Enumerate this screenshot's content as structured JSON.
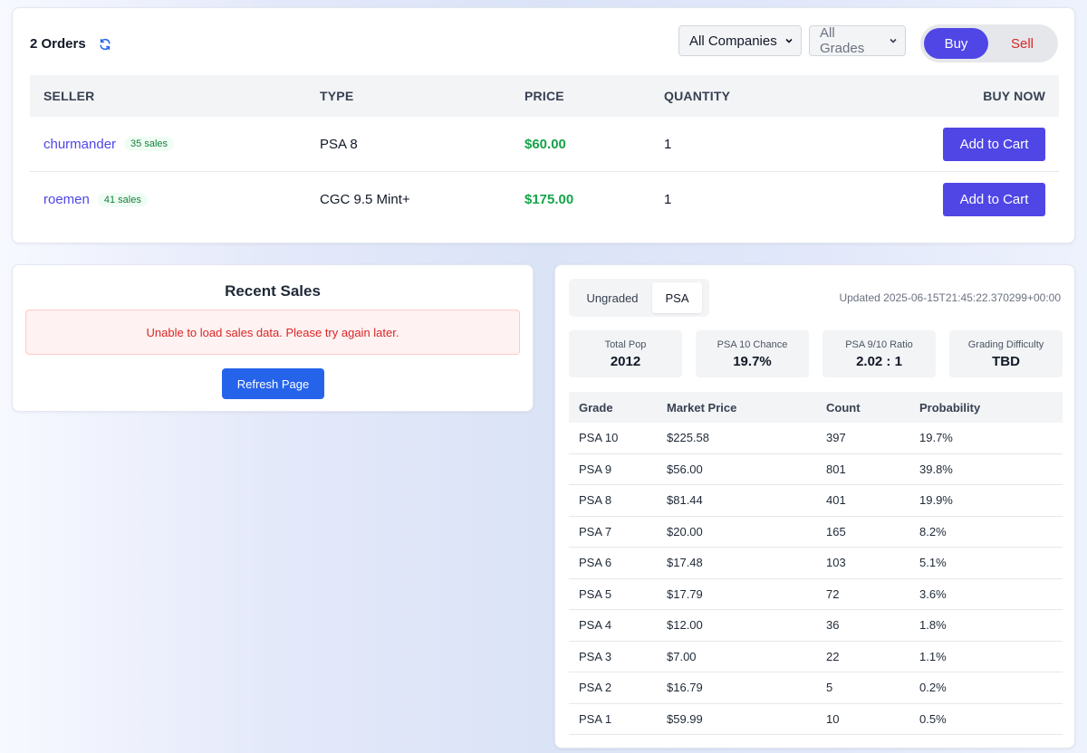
{
  "orders": {
    "title": "2 Orders",
    "company_filter": "All Companies",
    "grade_filter": "All Grades",
    "toggle": {
      "buy": "Buy",
      "sell": "Sell"
    },
    "columns": {
      "seller": "SELLER",
      "type": "TYPE",
      "price": "PRICE",
      "quantity": "QUANTITY",
      "buy_now": "BUY NOW"
    },
    "rows": [
      {
        "seller": "churmander",
        "sales": "35 sales",
        "type": "PSA 8",
        "price": "$60.00",
        "quantity": "1",
        "action": "Add to Cart"
      },
      {
        "seller": "roemen",
        "sales": "41 sales",
        "type": "CGC 9.5 Mint+",
        "price": "$175.00",
        "quantity": "1",
        "action": "Add to Cart"
      }
    ]
  },
  "recent_sales": {
    "title": "Recent Sales",
    "error": "Unable to load sales data. Please try again later.",
    "refresh_label": "Refresh Page"
  },
  "population": {
    "tabs": [
      "Ungraded",
      "PSA"
    ],
    "active_tab": "PSA",
    "updated": "Updated 2025-06-15T21:45:22.370299+00:00",
    "stats": [
      {
        "label": "Total Pop",
        "value": "2012"
      },
      {
        "label": "PSA 10 Chance",
        "value": "19.7%"
      },
      {
        "label": "PSA 9/10 Ratio",
        "value": "2.02 : 1"
      },
      {
        "label": "Grading Difficulty",
        "value": "TBD"
      }
    ],
    "columns": {
      "grade": "Grade",
      "market_price": "Market Price",
      "count": "Count",
      "probability": "Probability"
    },
    "rows": [
      {
        "grade": "PSA 10",
        "price": "$225.58",
        "count": "397",
        "prob": "19.7%"
      },
      {
        "grade": "PSA 9",
        "price": "$56.00",
        "count": "801",
        "prob": "39.8%"
      },
      {
        "grade": "PSA 8",
        "price": "$81.44",
        "count": "401",
        "prob": "19.9%"
      },
      {
        "grade": "PSA 7",
        "price": "$20.00",
        "count": "165",
        "prob": "8.2%"
      },
      {
        "grade": "PSA 6",
        "price": "$17.48",
        "count": "103",
        "prob": "5.1%"
      },
      {
        "grade": "PSA 5",
        "price": "$17.79",
        "count": "72",
        "prob": "3.6%"
      },
      {
        "grade": "PSA 4",
        "price": "$12.00",
        "count": "36",
        "prob": "1.8%"
      },
      {
        "grade": "PSA 3",
        "price": "$7.00",
        "count": "22",
        "prob": "1.1%"
      },
      {
        "grade": "PSA 2",
        "price": "$16.79",
        "count": "5",
        "prob": "0.2%"
      },
      {
        "grade": "PSA 1",
        "price": "$59.99",
        "count": "10",
        "prob": "0.5%"
      }
    ]
  },
  "colors": {
    "accent": "#4f46e5",
    "price_green": "#16a34a",
    "sell_red": "#dc2626",
    "refresh_blue": "#2563eb"
  },
  "icons": {
    "refresh": "refresh-icon",
    "chevron": "chevron-down-icon"
  }
}
